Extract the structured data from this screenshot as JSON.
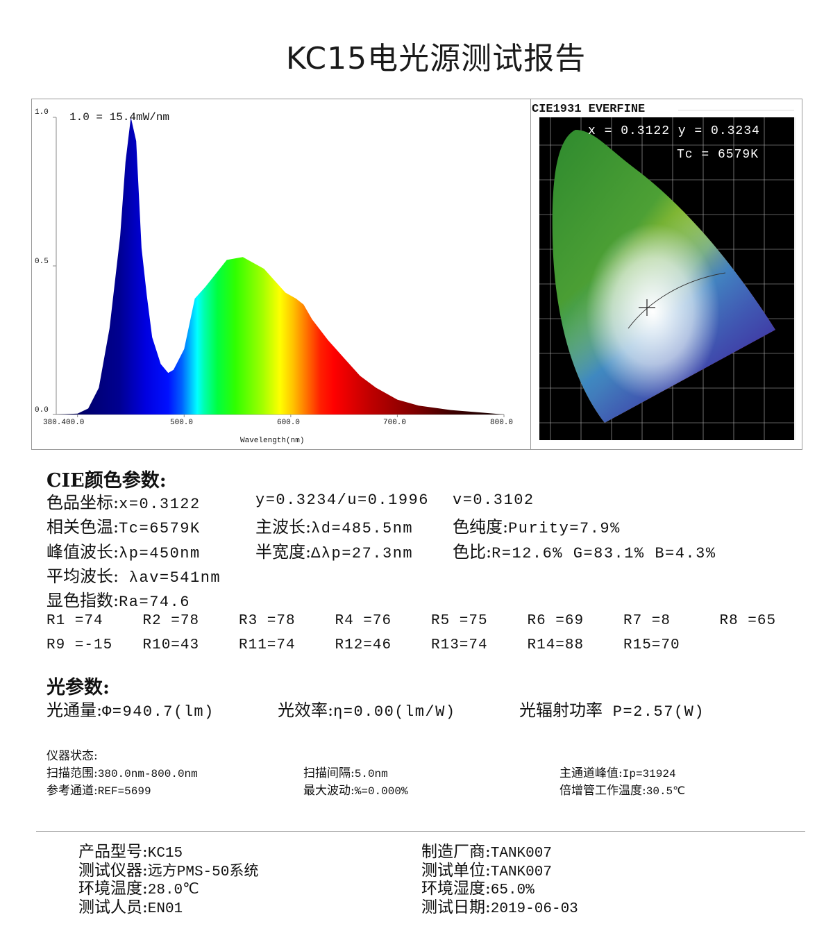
{
  "title": "KC15电光源测试报告",
  "spectrum": {
    "scale_note": "1.0 = 15.4mW/nm",
    "xlabel": "Wavelength(nm)",
    "x_ticks": [
      "380.400.0",
      "500.0",
      "600.0",
      "700.0",
      "800.0"
    ],
    "y_ticks": [
      "1.0",
      "0.5",
      "0.0"
    ]
  },
  "chart_data": {
    "type": "area",
    "xlabel": "Wavelength(nm)",
    "xlim": [
      380,
      800
    ],
    "ylim": [
      0,
      1
    ],
    "x": [
      380,
      400,
      410,
      420,
      430,
      440,
      445,
      450,
      455,
      460,
      465,
      470,
      478,
      485,
      490,
      500,
      510,
      520,
      540,
      555,
      565,
      575,
      585,
      595,
      605,
      612,
      620,
      635,
      650,
      665,
      680,
      700,
      720,
      750,
      780,
      800
    ],
    "y": [
      0,
      0.003,
      0.02,
      0.09,
      0.29,
      0.6,
      0.85,
      1.0,
      0.92,
      0.56,
      0.4,
      0.26,
      0.17,
      0.14,
      0.15,
      0.22,
      0.39,
      0.43,
      0.52,
      0.53,
      0.51,
      0.49,
      0.45,
      0.41,
      0.39,
      0.37,
      0.32,
      0.25,
      0.19,
      0.13,
      0.09,
      0.05,
      0.03,
      0.015,
      0.006,
      0
    ]
  },
  "cie": {
    "header": "CIE1931 EVERFINE",
    "xy": "x = 0.3122 y = 0.3234",
    "tc": "Tc = 6579K"
  },
  "color_params": {
    "heading": "CIE颜色参数:",
    "rows": [
      [
        {
          "label": "色品坐标:",
          "value": "x=0.3122"
        },
        {
          "label": "",
          "value": "y=0.3234/u=0.1996"
        },
        {
          "label": "",
          "value": "v=0.3102"
        }
      ],
      [
        {
          "label": "相关色温:",
          "value": "Tc=6579K"
        },
        {
          "label": "主波长:",
          "value": "λd=485.5nm"
        },
        {
          "label": "色纯度:",
          "value": "Purity=7.9%"
        }
      ],
      [
        {
          "label": "峰值波长:",
          "value": "λp=450nm"
        },
        {
          "label": "半宽度:",
          "value": "Δλp=27.3nm"
        },
        {
          "label": "色比:",
          "value": "R=12.6% G=83.1% B=4.3%"
        }
      ],
      [
        {
          "label": "平均波长:",
          "value": " λav=541nm"
        }
      ],
      [
        {
          "label": "显色指数:",
          "value": "Ra=74.6"
        }
      ]
    ],
    "r_values": [
      "R1 =74",
      "R2 =78",
      "R3 =78",
      "R4 =76",
      "R5 =75",
      "R6 =69",
      "R7 =8",
      "R8 =65",
      "R9 =-15",
      "R10=43",
      "R11=74",
      "R12=46",
      "R13=74",
      "R14=88",
      "R15=70"
    ]
  },
  "light_params": {
    "heading": "光参数:",
    "items": [
      {
        "label": "光通量:",
        "value": "Φ=940.7(lm)"
      },
      {
        "label": "光效率:",
        "value": "η=0.00(lm/W)"
      },
      {
        "label": "光辐射功率",
        "value": " P=2.57(W)"
      }
    ]
  },
  "instrument": {
    "heading": "仪器状态:",
    "items": [
      {
        "label": "扫描范围:",
        "value": "380.0nm-800.0nm"
      },
      {
        "label": "扫描间隔:",
        "value": "5.0nm"
      },
      {
        "label": "主通道峰值:",
        "value": "Ip=31924"
      },
      {
        "label": "参考通道:",
        "value": "REF=5699"
      },
      {
        "label": "最大波动:",
        "value": "%=0.000%"
      },
      {
        "label": "倍增管工作温度:",
        "value": "30.5℃"
      }
    ]
  },
  "footer": {
    "items": [
      {
        "label": "产品型号:",
        "value": "KC15"
      },
      {
        "label": "制造厂商:",
        "value": "TANK007"
      },
      {
        "label": "测试仪器:",
        "value": "远方PMS-50系统"
      },
      {
        "label": "测试单位:",
        "value": "TANK007"
      },
      {
        "label": "环境温度:",
        "value": "28.0℃"
      },
      {
        "label": "环境湿度:",
        "value": "65.0%"
      },
      {
        "label": "测试人员:",
        "value": "EN01"
      },
      {
        "label": "测试日期:",
        "value": "2019-06-03"
      }
    ]
  }
}
